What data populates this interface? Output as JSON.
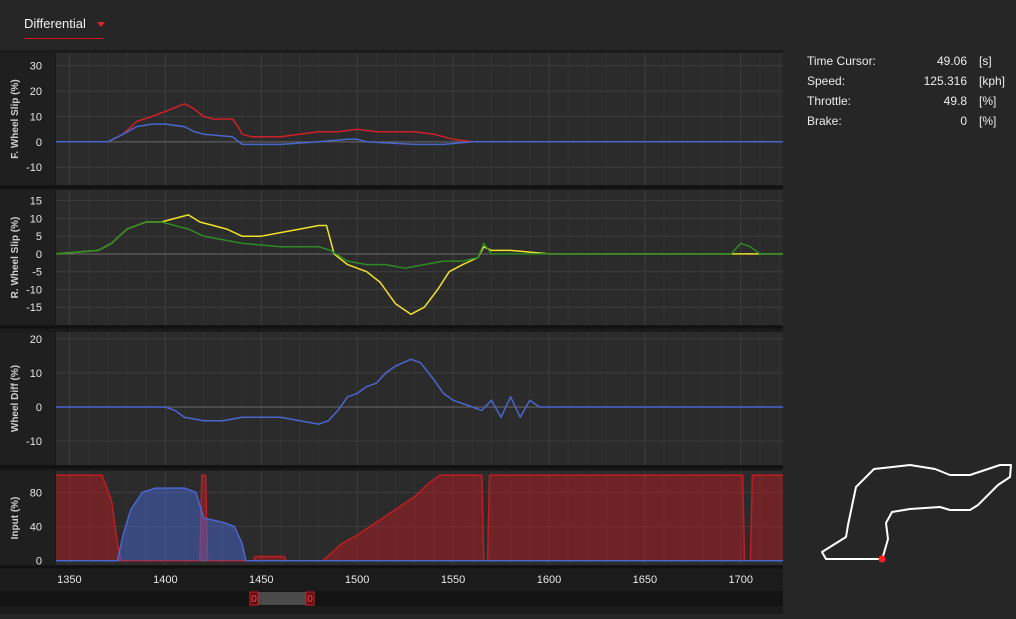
{
  "header": {
    "view_selector": "Differential"
  },
  "info": [
    {
      "label": "Time Cursor:",
      "value": "49.06",
      "unit": "[s]"
    },
    {
      "label": "Speed:",
      "value": "125.316",
      "unit": "[kph]"
    },
    {
      "label": "Throttle:",
      "value": "49.8",
      "unit": "[%]"
    },
    {
      "label": "Brake:",
      "value": "0",
      "unit": "[%]"
    }
  ],
  "scrollbar": {
    "left_handle": "0",
    "right_handle": "0"
  },
  "colors": {
    "front_outer": "#d0202a",
    "front_inner": "#4a67cf",
    "rear_a": "#f0e12a",
    "rear_b": "#2d8a25",
    "diff": "#4a67cf",
    "throttle": "#c01c22",
    "brake": "#4a67cf",
    "marker": "#ff2020"
  },
  "chart_data": [
    {
      "type": "line",
      "ylabel": "F. Wheel Slip (%)",
      "ylim": [
        -17,
        35
      ],
      "yticks": [
        "30",
        "20",
        "10",
        "0",
        "-10"
      ],
      "series": [
        {
          "color_key": "front_outer",
          "points": [
            [
              1343,
              0
            ],
            [
              1370,
              0
            ],
            [
              1378,
              3
            ],
            [
              1385,
              8
            ],
            [
              1393,
              10
            ],
            [
              1400,
              12
            ],
            [
              1410,
              15
            ],
            [
              1415,
              13
            ],
            [
              1420,
              10
            ],
            [
              1425,
              9
            ],
            [
              1435,
              9
            ],
            [
              1438,
              6
            ],
            [
              1440,
              3
            ],
            [
              1445,
              2
            ],
            [
              1460,
              2
            ],
            [
              1470,
              3
            ],
            [
              1480,
              4
            ],
            [
              1490,
              4
            ],
            [
              1500,
              5
            ],
            [
              1510,
              4
            ],
            [
              1520,
              4
            ],
            [
              1530,
              4
            ],
            [
              1540,
              3
            ],
            [
              1545,
              2
            ],
            [
              1550,
              1
            ],
            [
              1560,
              0
            ],
            [
              1722,
              0
            ]
          ]
        },
        {
          "color_key": "front_inner",
          "points": [
            [
              1343,
              0
            ],
            [
              1370,
              0
            ],
            [
              1378,
              3
            ],
            [
              1385,
              6
            ],
            [
              1393,
              7
            ],
            [
              1400,
              7
            ],
            [
              1410,
              6
            ],
            [
              1415,
              4
            ],
            [
              1420,
              3
            ],
            [
              1435,
              2
            ],
            [
              1440,
              -1
            ],
            [
              1445,
              -1
            ],
            [
              1460,
              -1
            ],
            [
              1480,
              0
            ],
            [
              1495,
              1
            ],
            [
              1500,
              1
            ],
            [
              1505,
              0
            ],
            [
              1530,
              -1
            ],
            [
              1545,
              -1
            ],
            [
              1560,
              0
            ],
            [
              1722,
              0
            ]
          ]
        }
      ]
    },
    {
      "type": "line",
      "ylabel": "R. Wheel Slip (%)",
      "ylim": [
        -20,
        18
      ],
      "yticks": [
        "15",
        "10",
        "5",
        "0",
        "-5",
        "-10",
        "-15"
      ],
      "series": [
        {
          "color_key": "rear_a",
          "points": [
            [
              1343,
              0
            ],
            [
              1365,
              1
            ],
            [
              1372,
              3
            ],
            [
              1380,
              7
            ],
            [
              1390,
              9
            ],
            [
              1398,
              9
            ],
            [
              1405,
              10
            ],
            [
              1412,
              11
            ],
            [
              1418,
              9
            ],
            [
              1425,
              8
            ],
            [
              1432,
              7
            ],
            [
              1440,
              5
            ],
            [
              1450,
              5
            ],
            [
              1460,
              6
            ],
            [
              1470,
              7
            ],
            [
              1480,
              8
            ],
            [
              1484,
              8
            ],
            [
              1488,
              0
            ],
            [
              1495,
              -3
            ],
            [
              1505,
              -5
            ],
            [
              1512,
              -8
            ],
            [
              1520,
              -14
            ],
            [
              1528,
              -17
            ],
            [
              1535,
              -15
            ],
            [
              1542,
              -10
            ],
            [
              1548,
              -5
            ],
            [
              1555,
              -3
            ],
            [
              1563,
              -1
            ],
            [
              1566,
              2
            ],
            [
              1570,
              1
            ],
            [
              1580,
              1
            ],
            [
              1600,
              0
            ],
            [
              1620,
              0
            ],
            [
              1722,
              0
            ]
          ]
        },
        {
          "color_key": "rear_b",
          "points": [
            [
              1343,
              0
            ],
            [
              1365,
              1
            ],
            [
              1372,
              3
            ],
            [
              1380,
              7
            ],
            [
              1390,
              9
            ],
            [
              1398,
              9
            ],
            [
              1405,
              8
            ],
            [
              1412,
              7
            ],
            [
              1420,
              5
            ],
            [
              1430,
              4
            ],
            [
              1440,
              3
            ],
            [
              1460,
              2
            ],
            [
              1480,
              2
            ],
            [
              1486,
              1
            ],
            [
              1495,
              -2
            ],
            [
              1505,
              -3
            ],
            [
              1515,
              -3
            ],
            [
              1525,
              -4
            ],
            [
              1535,
              -3
            ],
            [
              1545,
              -2
            ],
            [
              1555,
              -2
            ],
            [
              1563,
              -1
            ],
            [
              1566,
              3
            ],
            [
              1570,
              0
            ],
            [
              1600,
              0
            ],
            [
              1650,
              0
            ],
            [
              1695,
              0
            ],
            [
              1700,
              3
            ],
            [
              1705,
              2
            ],
            [
              1710,
              0
            ],
            [
              1722,
              0
            ]
          ]
        }
      ]
    },
    {
      "type": "line",
      "ylabel": "Wheel Diff (%)",
      "ylim": [
        -17,
        22
      ],
      "yticks": [
        "20",
        "10",
        "0",
        "-10"
      ],
      "series": [
        {
          "color_key": "diff",
          "points": [
            [
              1343,
              0
            ],
            [
              1395,
              0
            ],
            [
              1400,
              0
            ],
            [
              1405,
              -1
            ],
            [
              1410,
              -3
            ],
            [
              1420,
              -4
            ],
            [
              1430,
              -4
            ],
            [
              1440,
              -3
            ],
            [
              1450,
              -3
            ],
            [
              1460,
              -3
            ],
            [
              1470,
              -4
            ],
            [
              1480,
              -5
            ],
            [
              1485,
              -4
            ],
            [
              1490,
              -1
            ],
            [
              1495,
              3
            ],
            [
              1500,
              4
            ],
            [
              1505,
              6
            ],
            [
              1510,
              7
            ],
            [
              1515,
              10
            ],
            [
              1520,
              12
            ],
            [
              1528,
              14
            ],
            [
              1533,
              13
            ],
            [
              1540,
              8
            ],
            [
              1545,
              4
            ],
            [
              1550,
              2
            ],
            [
              1560,
              0
            ],
            [
              1565,
              -1
            ],
            [
              1570,
              2
            ],
            [
              1575,
              -3
            ],
            [
              1580,
              3
            ],
            [
              1585,
              -3
            ],
            [
              1590,
              2
            ],
            [
              1595,
              0
            ],
            [
              1600,
              0
            ],
            [
              1722,
              0
            ]
          ]
        }
      ]
    },
    {
      "type": "area",
      "ylabel": "Input (%)",
      "ylim": [
        -5,
        105
      ],
      "yticks": [
        "80",
        "40",
        "0"
      ],
      "xticks": [
        "1350",
        "1400",
        "1450",
        "1500",
        "1550",
        "1600",
        "1650",
        "1700"
      ],
      "series": [
        {
          "name": "Throttle",
          "color_key": "throttle",
          "points": [
            [
              1343,
              100
            ],
            [
              1367,
              100
            ],
            [
              1372,
              70
            ],
            [
              1375,
              20
            ],
            [
              1377,
              0
            ],
            [
              1418,
              0
            ],
            [
              1419,
              100
            ],
            [
              1421,
              100
            ],
            [
              1422,
              0
            ],
            [
              1446,
              0
            ],
            [
              1447,
              5
            ],
            [
              1462,
              5
            ],
            [
              1463,
              0
            ],
            [
              1482,
              0
            ],
            [
              1483,
              2
            ],
            [
              1487,
              10
            ],
            [
              1492,
              20
            ],
            [
              1500,
              30
            ],
            [
              1510,
              45
            ],
            [
              1520,
              60
            ],
            [
              1530,
              75
            ],
            [
              1537,
              90
            ],
            [
              1543,
              100
            ],
            [
              1565,
              100
            ],
            [
              1566,
              0
            ],
            [
              1568,
              0
            ],
            [
              1569,
              100
            ],
            [
              1701,
              100
            ],
            [
              1702,
              0
            ],
            [
              1705,
              0
            ],
            [
              1706,
              100
            ],
            [
              1722,
              100
            ]
          ]
        },
        {
          "name": "Brake",
          "color_key": "brake",
          "points": [
            [
              1343,
              0
            ],
            [
              1375,
              0
            ],
            [
              1378,
              30
            ],
            [
              1382,
              60
            ],
            [
              1388,
              80
            ],
            [
              1395,
              85
            ],
            [
              1410,
              85
            ],
            [
              1416,
              80
            ],
            [
              1420,
              50
            ],
            [
              1430,
              45
            ],
            [
              1436,
              40
            ],
            [
              1440,
              20
            ],
            [
              1442,
              0
            ],
            [
              1722,
              0
            ]
          ]
        }
      ]
    }
  ]
}
